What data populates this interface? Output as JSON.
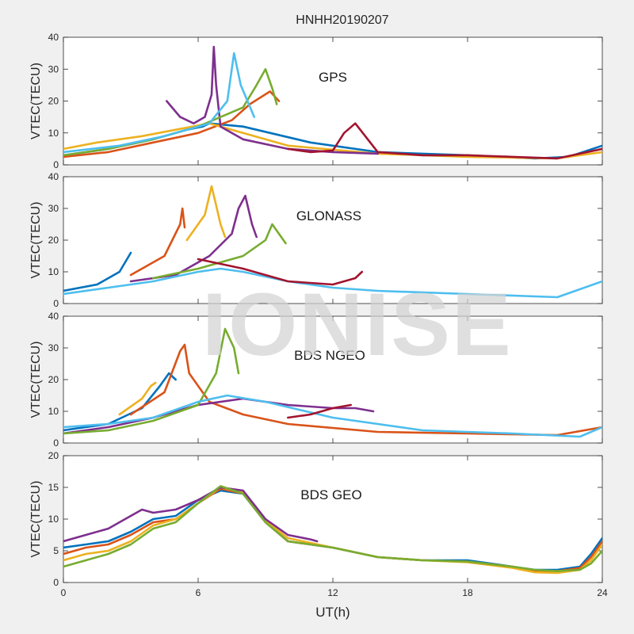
{
  "title": "HNHH20190207",
  "watermark": "IONISE",
  "colors": [
    "#0072BD",
    "#D95319",
    "#EDB120",
    "#7E2F8E",
    "#77AC30",
    "#4DBEEE",
    "#A2142F"
  ],
  "chart_data": [
    {
      "type": "line",
      "label": "GPS",
      "ylabel": "VTEC(TECU)",
      "ylim": [
        0,
        40
      ],
      "yticks": [
        0,
        10,
        20,
        30,
        40
      ],
      "xlim": [
        0,
        24
      ],
      "grid": false,
      "series": [
        {
          "x": [
            0,
            2,
            4,
            5.5,
            6.2,
            6.5,
            8,
            11,
            14,
            18,
            21,
            22.5,
            24
          ],
          "y": [
            3,
            5,
            8,
            11,
            12,
            13,
            12,
            7,
            4,
            3,
            2,
            2.5,
            6
          ]
        },
        {
          "x": [
            0,
            2,
            4,
            6,
            7.5,
            8.3,
            9.2,
            9.6
          ],
          "y": [
            2.5,
            4,
            7,
            10,
            14,
            19,
            23,
            20
          ]
        },
        {
          "x": [
            0,
            1.5,
            3.5,
            5,
            6.5,
            7,
            8,
            10,
            14,
            18,
            22,
            24
          ],
          "y": [
            5,
            7,
            9,
            11,
            13,
            12,
            10,
            6,
            3.5,
            2.5,
            2,
            4
          ]
        },
        {
          "x": [
            4.6,
            5.2,
            5.8,
            6.3,
            6.6,
            6.7,
            6.8,
            7,
            8,
            10,
            12,
            14
          ],
          "y": [
            20,
            15,
            13,
            15,
            22,
            37,
            25,
            12,
            8,
            5,
            4,
            3.5
          ]
        },
        {
          "x": [
            0,
            2,
            4,
            6,
            8,
            8.6,
            9,
            9.3,
            9.5
          ],
          "y": [
            3,
            5,
            8,
            12,
            18,
            25,
            30,
            24,
            19
          ]
        },
        {
          "x": [
            0,
            2.5,
            4.5,
            6.5,
            7.3,
            7.6,
            7.9,
            8.5
          ],
          "y": [
            4,
            6,
            9,
            13,
            20,
            35,
            25,
            15
          ]
        },
        {
          "x": [
            10,
            11,
            12,
            12.5,
            13,
            14,
            16,
            18,
            20,
            22,
            24
          ],
          "y": [
            5,
            4,
            4.5,
            10,
            13,
            4,
            3,
            3,
            2.5,
            2,
            5
          ]
        }
      ]
    },
    {
      "type": "line",
      "label": "GLONASS",
      "ylabel": "VTEC(TECU)",
      "ylim": [
        0,
        40
      ],
      "yticks": [
        0,
        10,
        20,
        30,
        40
      ],
      "xlim": [
        0,
        24
      ],
      "grid": false,
      "series": [
        {
          "x": [
            0,
            1.5,
            2.5,
            3
          ],
          "y": [
            4,
            6,
            10,
            16
          ]
        },
        {
          "x": [
            3,
            4.5,
            5.2,
            5.3,
            5.4
          ],
          "y": [
            9,
            15,
            25,
            30,
            24
          ]
        },
        {
          "x": [
            5.5,
            6.3,
            6.6,
            6.8,
            7,
            7.2
          ],
          "y": [
            20,
            28,
            37,
            31,
            25,
            21
          ]
        },
        {
          "x": [
            3,
            5,
            6.5,
            7.5,
            7.8,
            8.1,
            8.4,
            8.6
          ],
          "y": [
            7,
            9,
            15,
            22,
            30,
            34,
            25,
            21
          ]
        },
        {
          "x": [
            4,
            6,
            8,
            9,
            9.3,
            9.6,
            9.9
          ],
          "y": [
            8,
            11,
            15,
            20,
            25,
            22,
            19
          ]
        },
        {
          "x": [
            0,
            2,
            4,
            6,
            7,
            8,
            10,
            12,
            14,
            18,
            22,
            24
          ],
          "y": [
            3,
            5,
            7,
            10,
            11,
            10,
            7,
            5,
            4,
            3,
            2,
            7
          ]
        },
        {
          "x": [
            6,
            8,
            10,
            12,
            13,
            13.3
          ],
          "y": [
            14,
            11,
            7,
            6,
            8,
            10
          ]
        }
      ]
    },
    {
      "type": "line",
      "label": "BDS NGEO",
      "ylabel": "VTEC(TECU)",
      "ylim": [
        0,
        40
      ],
      "yticks": [
        0,
        10,
        20,
        30,
        40
      ],
      "xlim": [
        0,
        24
      ],
      "grid": false,
      "series": [
        {
          "x": [
            0,
            2,
            3.5,
            4.3,
            4.7,
            5
          ],
          "y": [
            4,
            6,
            11,
            18,
            22,
            20
          ]
        },
        {
          "x": [
            3,
            4.5,
            5.2,
            5.4,
            5.6,
            6.5,
            8,
            10,
            14,
            18,
            22,
            24
          ],
          "y": [
            9,
            16,
            29,
            31,
            22,
            13,
            9,
            6,
            3.5,
            3,
            2.5,
            5
          ]
        },
        {
          "x": [
            2.5,
            3.5,
            3.9,
            4.1
          ],
          "y": [
            9,
            14,
            18,
            19
          ]
        },
        {
          "x": [
            0,
            2,
            4,
            6,
            8,
            10,
            12,
            13,
            13.8
          ],
          "y": [
            3,
            5,
            8,
            12,
            14,
            12,
            11,
            11,
            10
          ]
        },
        {
          "x": [
            0,
            2,
            4,
            6,
            6.8,
            7.2,
            7.6,
            7.8
          ],
          "y": [
            3,
            4,
            7,
            12,
            22,
            36,
            30,
            22
          ]
        },
        {
          "x": [
            0,
            2,
            4,
            6,
            7.3,
            9,
            12,
            16,
            20,
            23,
            24
          ],
          "y": [
            5,
            6,
            8,
            13,
            15,
            13,
            8,
            4,
            3,
            2,
            5
          ]
        },
        {
          "x": [
            10,
            11,
            12,
            12.8
          ],
          "y": [
            8,
            9,
            11,
            12
          ]
        }
      ]
    },
    {
      "type": "line",
      "label": "BDS GEO",
      "ylabel": "VTEC(TECU)",
      "ylim": [
        0,
        20
      ],
      "yticks": [
        0,
        5,
        10,
        15,
        20
      ],
      "xlim": [
        0,
        24
      ],
      "xticks": [
        0,
        6,
        12,
        18,
        24
      ],
      "xlabel": "UT(h)",
      "grid": false,
      "series": [
        {
          "x": [
            0,
            1,
            2,
            3,
            4,
            5,
            6,
            7,
            8,
            9,
            10,
            12,
            14,
            16,
            18,
            20,
            21,
            22,
            23,
            23.5,
            24
          ],
          "y": [
            5.5,
            6,
            6.5,
            8,
            10,
            10.5,
            13,
            14.5,
            14,
            9.5,
            6.5,
            5.5,
            4,
            3.5,
            3.5,
            2.5,
            2,
            2,
            2.5,
            4.5,
            7
          ]
        },
        {
          "x": [
            0,
            1,
            2,
            3,
            4,
            5,
            6,
            7,
            8,
            9,
            10,
            12,
            14,
            16,
            18,
            20,
            21,
            22,
            23,
            23.5,
            24
          ],
          "y": [
            4.5,
            5.5,
            6,
            7.5,
            9.5,
            10,
            12.5,
            14.8,
            14,
            9.5,
            6.5,
            5.5,
            4,
            3.5,
            3.3,
            2.5,
            1.8,
            1.8,
            2.3,
            4,
            6.5
          ]
        },
        {
          "x": [
            0,
            1,
            2,
            3,
            4,
            5,
            6,
            7,
            8,
            9,
            10,
            12,
            14,
            16,
            18,
            20,
            21,
            22,
            23,
            23.5,
            24
          ],
          "y": [
            3.5,
            4.5,
            5,
            6.5,
            9,
            10,
            12.5,
            15,
            14.2,
            9.8,
            7,
            5.5,
            4,
            3.5,
            3.2,
            2.3,
            1.6,
            1.5,
            2,
            3.5,
            6
          ]
        },
        {
          "x": [
            0,
            1,
            2,
            2.5,
            3,
            3.5,
            4,
            5,
            6,
            7,
            8,
            9,
            10,
            11,
            11.3
          ],
          "y": [
            6.5,
            7.5,
            8.5,
            9.5,
            10.5,
            11.5,
            11,
            11.5,
            13,
            15,
            14.5,
            10,
            7.5,
            6.8,
            6.5
          ]
        },
        {
          "x": [
            0,
            1,
            2,
            3,
            4,
            5,
            6,
            7,
            8,
            9,
            10,
            12,
            14,
            16,
            18,
            20,
            21,
            22,
            23,
            23.5,
            24
          ],
          "y": [
            2.5,
            3.5,
            4.5,
            6,
            8.5,
            9.5,
            12.5,
            15.2,
            14,
            9.5,
            6.5,
            5.5,
            4,
            3.5,
            3.3,
            2.5,
            2,
            1.8,
            2,
            3,
            5
          ]
        }
      ]
    }
  ]
}
